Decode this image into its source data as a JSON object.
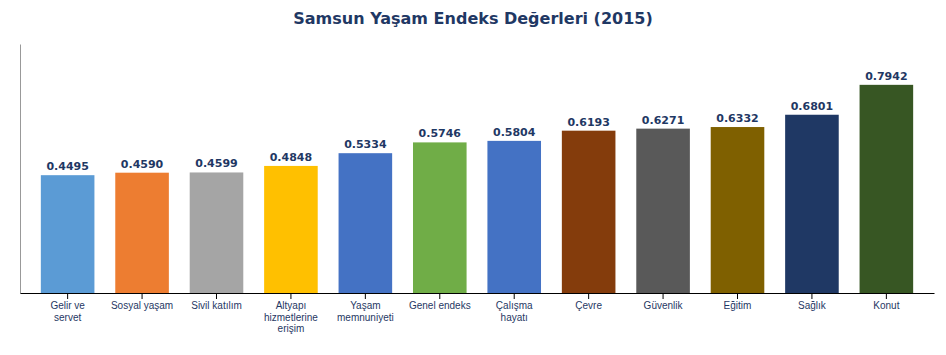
{
  "chart_data": {
    "type": "bar",
    "title": "Samsun Yaşam Endeks Değerleri (2015)",
    "categories": [
      "Gelir ve\nservet",
      "Sosyal yaşam",
      "Sivil katılım",
      "Altyapı\nhizmetlerine\nerişim",
      "Yaşam\nmemnuniyeti",
      "Genel endeks",
      "Çalışma\nhayatı",
      "Çevre",
      "Güvenlik",
      "Eğitim",
      "Sağlık",
      "Konut"
    ],
    "values": [
      0.4495,
      0.459,
      0.4599,
      0.4848,
      0.5334,
      0.5746,
      0.5804,
      0.6193,
      0.6271,
      0.6332,
      0.6801,
      0.7942
    ],
    "value_labels": [
      "0.4495",
      "0.4590",
      "0.4599",
      "0.4848",
      "0.5334",
      "0.5746",
      "0.5804",
      "0.6193",
      "0.6271",
      "0.6332",
      "0.6801",
      "0.7942"
    ],
    "colors": [
      "#5B9BD5",
      "#ED7D31",
      "#A5A5A5",
      "#FFC000",
      "#4472C4",
      "#70AD47",
      "#4472C4",
      "#843C0C",
      "#595959",
      "#7F6000",
      "#1F3864",
      "#375623"
    ],
    "ylim": [
      0,
      0.95
    ],
    "data_labels": true,
    "tick_labels": "x",
    "grid": false
  }
}
